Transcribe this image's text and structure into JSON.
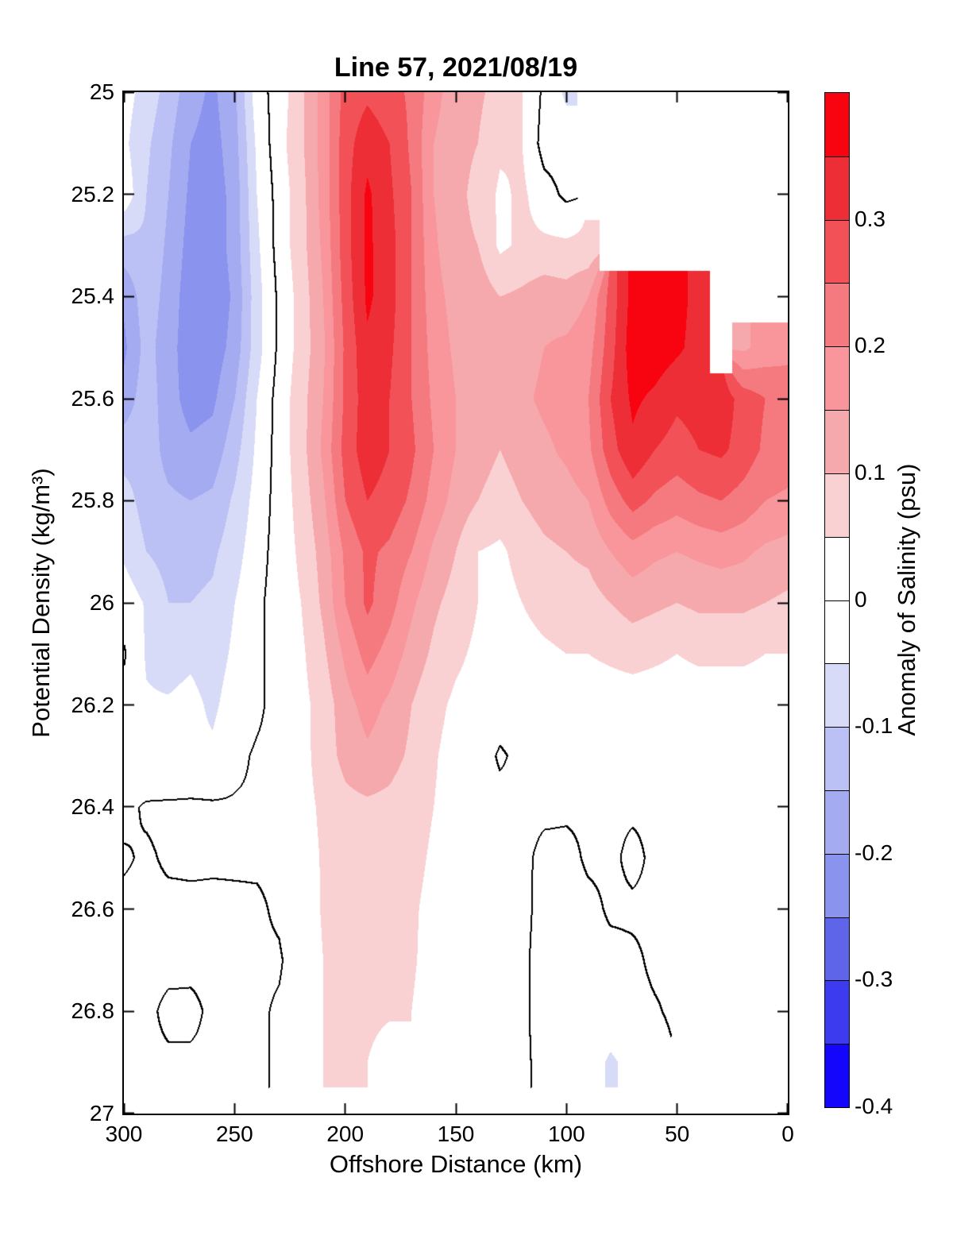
{
  "title": "Line 57, 2021/08/19",
  "axes": {
    "x": {
      "label": "Offshore Distance (km)",
      "tick_labels": [
        "300",
        "250",
        "200",
        "150",
        "100",
        "50",
        "0"
      ],
      "tick_values": [
        300,
        250,
        200,
        150,
        100,
        50,
        0
      ],
      "min": 0,
      "max": 300,
      "reversed": true
    },
    "y": {
      "label": "Potential Density (kg/m³)",
      "tick_labels": [
        "25",
        "25.2",
        "25.4",
        "25.6",
        "25.8",
        "26",
        "26.2",
        "26.4",
        "26.6",
        "26.8",
        "27"
      ],
      "tick_values": [
        25,
        25.2,
        25.4,
        25.6,
        25.8,
        26,
        26.2,
        26.4,
        26.6,
        26.8,
        27
      ],
      "min": 25,
      "max": 27,
      "increases_down": true
    }
  },
  "colorbar": {
    "label": "Anomaly of Salinity (psu)",
    "tick_labels": [
      "0.3",
      "0.2",
      "0.1",
      "0",
      "-0.1",
      "-0.2",
      "-0.3",
      "-0.4"
    ],
    "tick_values": [
      0.3,
      0.2,
      0.1,
      0,
      -0.1,
      -0.2,
      -0.3,
      -0.4
    ],
    "min": -0.4,
    "max": 0.4,
    "level_step": 0.05,
    "colors_low_to_high": [
      "#1405fb",
      "#3d3bef",
      "#5e65e8",
      "#8a93ed",
      "#a4abf1",
      "#bcc1f5",
      "#d8dbf8",
      "#ffffff",
      "#ffffff",
      "#fad1d2",
      "#f6a9ad",
      "#f8969b",
      "#f57a80",
      "#f25158",
      "#ee2e36",
      "#f80310"
    ],
    "line_color": "#000000"
  },
  "chart_data": {
    "type": "heatmap",
    "subtype": "filled-contour-section",
    "title": "Line 57, 2021/08/19",
    "xlabel": "Offshore Distance (km)",
    "ylabel": "Potential Density (kg/m³)",
    "legend_label": "Anomaly of Salinity (psu)",
    "xlim": [
      300,
      0
    ],
    "ylim": [
      25,
      27
    ],
    "contour_level_drawn": 0,
    "x_km": [
      300,
      290,
      280,
      270,
      260,
      250,
      240,
      230,
      220,
      210,
      200,
      190,
      180,
      170,
      160,
      150,
      140,
      130,
      120,
      110,
      100,
      90,
      80,
      70,
      60,
      50,
      40,
      30,
      20,
      10,
      0
    ],
    "y_sigma": [
      25.0,
      25.1,
      25.2,
      25.3,
      25.4,
      25.5,
      25.6,
      25.7,
      25.8,
      25.9,
      26.0,
      26.1,
      26.2,
      26.3,
      26.4,
      26.5,
      26.6,
      26.7,
      26.8,
      26.9,
      27.0
    ],
    "values": [
      [
        -0.03,
        -0.07,
        -0.12,
        -0.18,
        -0.21,
        -0.16,
        -0.02,
        0.02,
        0.09,
        0.17,
        0.27,
        0.29,
        0.27,
        0.24,
        0.17,
        0.12,
        0.11,
        0.08,
        0.05,
        -0.01,
        -0.06,
        null,
        null,
        null,
        null,
        null,
        null,
        null,
        null,
        null,
        null
      ],
      [
        -0.04,
        -0.09,
        -0.14,
        -0.2,
        -0.22,
        -0.17,
        -0.04,
        0.03,
        0.09,
        0.17,
        0.28,
        0.33,
        0.3,
        0.24,
        0.15,
        0.11,
        0.1,
        0.06,
        0.05,
        -0.02,
        -0.02,
        null,
        null,
        null,
        null,
        null,
        null,
        null,
        null,
        null,
        null
      ],
      [
        -0.015,
        -0.1,
        -0.15,
        -0.21,
        -0.23,
        -0.18,
        -0.05,
        0.02,
        0.08,
        0.17,
        0.28,
        0.36,
        0.31,
        0.25,
        0.15,
        0.11,
        0.09,
        0.04,
        0.06,
        0.02,
        -0.01,
        null,
        null,
        null,
        null,
        null,
        null,
        null,
        null,
        null,
        null
      ],
      [
        -0.12,
        -0.11,
        -0.16,
        -0.22,
        -0.23,
        -0.18,
        -0.06,
        0.02,
        0.08,
        0.16,
        0.28,
        0.36,
        0.32,
        0.25,
        0.16,
        0.11,
        0.1,
        0.04,
        0.06,
        0.06,
        0.06,
        0.06,
        null,
        null,
        null,
        null,
        null,
        null,
        null,
        null,
        null
      ],
      [
        -0.19,
        -0.12,
        -0.17,
        -0.23,
        -0.24,
        -0.19,
        -0.07,
        0.01,
        0.07,
        0.15,
        0.27,
        0.36,
        0.32,
        0.25,
        0.17,
        0.13,
        0.13,
        0.1,
        0.11,
        0.13,
        0.12,
        0.15,
        0.27,
        0.37,
        0.38,
        0.37,
        0.33,
        null,
        null,
        null,
        null
      ],
      [
        -0.21,
        -0.13,
        -0.18,
        -0.23,
        -0.23,
        -0.18,
        -0.07,
        0.01,
        0.07,
        0.14,
        0.26,
        0.34,
        0.31,
        0.25,
        0.18,
        0.14,
        0.14,
        0.12,
        0.13,
        0.15,
        0.16,
        0.18,
        0.28,
        0.38,
        0.38,
        0.36,
        0.33,
        null,
        0.14,
        0.17,
        0.19
      ],
      [
        -0.18,
        -0.12,
        -0.18,
        -0.22,
        -0.21,
        -0.15,
        -0.05,
        0.02,
        0.08,
        0.15,
        0.26,
        0.33,
        0.3,
        0.25,
        0.19,
        0.15,
        0.13,
        0.12,
        0.14,
        0.16,
        0.17,
        0.2,
        0.3,
        0.36,
        0.34,
        0.31,
        0.32,
        0.33,
        0.28,
        0.25,
        0.22
      ],
      [
        -0.12,
        -0.12,
        -0.17,
        -0.19,
        -0.18,
        -0.12,
        -0.04,
        0.02,
        0.08,
        0.16,
        0.27,
        0.33,
        0.3,
        0.26,
        0.2,
        0.15,
        0.12,
        0.1,
        0.12,
        0.14,
        0.16,
        0.19,
        0.28,
        0.34,
        0.3,
        0.28,
        0.3,
        0.31,
        0.28,
        0.24,
        0.23
      ],
      [
        -0.08,
        -0.12,
        -0.14,
        -0.15,
        -0.14,
        -0.09,
        -0.03,
        0.02,
        0.07,
        0.14,
        0.25,
        0.3,
        0.28,
        0.24,
        0.18,
        0.13,
        0.1,
        0.08,
        0.1,
        0.12,
        0.13,
        0.15,
        0.22,
        0.27,
        0.24,
        0.22,
        0.24,
        0.25,
        0.23,
        0.2,
        0.19
      ],
      [
        -0.06,
        -0.1,
        -0.12,
        -0.12,
        -0.11,
        -0.07,
        -0.02,
        0.02,
        0.06,
        0.12,
        0.21,
        0.26,
        0.24,
        0.2,
        0.14,
        0.1,
        0.05,
        0.04,
        0.07,
        0.09,
        0.1,
        0.11,
        0.15,
        0.18,
        0.16,
        0.15,
        0.16,
        0.17,
        0.16,
        0.14,
        0.13
      ],
      [
        -0.02,
        -0.055,
        -0.1,
        -0.1,
        -0.09,
        -0.05,
        -0.01,
        0.02,
        0.05,
        0.11,
        0.2,
        0.26,
        0.22,
        0.16,
        0.11,
        0.08,
        0.05,
        0.03,
        0.05,
        0.07,
        0.08,
        0.08,
        0.1,
        0.12,
        0.11,
        0.1,
        0.11,
        0.11,
        0.11,
        0.1,
        0.09
      ],
      [
        0.004,
        -0.055,
        -0.07,
        -0.06,
        -0.075,
        -0.04,
        -0.008,
        0.015,
        0.04,
        0.09,
        0.16,
        0.22,
        0.18,
        0.13,
        0.09,
        0.06,
        0.04,
        0.02,
        0.03,
        0.04,
        0.05,
        0.05,
        0.06,
        0.07,
        0.06,
        0.05,
        0.06,
        0.06,
        0.06,
        0.05,
        0.05
      ],
      [
        -0.015,
        -0.045,
        -0.045,
        -0.035,
        -0.06,
        -0.025,
        -0.008,
        0.015,
        0.035,
        0.07,
        0.13,
        0.17,
        0.14,
        0.1,
        0.065,
        0.04,
        0.03,
        0.02,
        0.02,
        0.02,
        0.02,
        0.02,
        0.02,
        0.02,
        0.02,
        0.02,
        0.02,
        0.02,
        0.02,
        0.02,
        0.02
      ],
      [
        -0.03,
        -0.04,
        -0.05,
        -0.04,
        -0.04,
        -0.01,
        0.005,
        0.01,
        0.03,
        0.075,
        0.115,
        0.14,
        0.12,
        0.09,
        0.055,
        0.03,
        0.02,
        -0.005,
        0.01,
        0.01,
        0.01,
        0.01,
        0.01,
        0.01,
        0.01,
        0.01,
        0.01,
        0.01,
        0.01,
        0.01,
        0.01
      ],
      [
        -0.01,
        0.005,
        0.008,
        0.008,
        0.006,
        0.004,
        0.004,
        0.01,
        0.03,
        0.06,
        0.085,
        0.09,
        0.085,
        0.065,
        0.05,
        0.03,
        0.02,
        0.012,
        0.01,
        0.008,
        0.006,
        0.005,
        0.004,
        0.004,
        0.004,
        0.004,
        0.006,
        0.007,
        0.008,
        0.008,
        0.008
      ],
      [
        0.004,
        -0.005,
        0.005,
        0.005,
        0.004,
        0.004,
        0.004,
        0.005,
        0.025,
        0.055,
        0.07,
        0.075,
        0.07,
        0.06,
        0.045,
        0.028,
        0.018,
        0.012,
        0.009,
        -0.01,
        -0.01,
        0.005,
        0.005,
        -0.006,
        0.005,
        0.005,
        0.006,
        0.006,
        0.007,
        0.007,
        0.007
      ],
      [
        -0.008,
        -0.008,
        -0.008,
        -0.006,
        -0.006,
        -0.005,
        -0.004,
        0.004,
        0.02,
        0.055,
        0.065,
        0.07,
        0.065,
        0.055,
        0.04,
        0.025,
        0.015,
        0.01,
        0.008,
        -0.01,
        -0.012,
        -0.008,
        0.004,
        0.004,
        0.004,
        0.004,
        0.005,
        0.005,
        0.005,
        0.005,
        0.005
      ],
      [
        -0.008,
        -0.008,
        -0.008,
        -0.007,
        -0.006,
        -0.005,
        -0.004,
        -0.003,
        0.015,
        0.05,
        0.065,
        0.065,
        0.06,
        0.055,
        0.035,
        0.02,
        0.012,
        0.008,
        0.006,
        -0.012,
        -0.012,
        -0.01,
        -0.008,
        -0.004,
        0.004,
        0.004,
        0.004,
        0.004,
        0.004,
        0.004,
        0.004
      ],
      [
        -0.008,
        -0.006,
        0.006,
        0.006,
        -0.005,
        -0.005,
        -0.004,
        0.003,
        0.012,
        0.05,
        0.065,
        0.06,
        0.055,
        0.05,
        0.03,
        0.015,
        0.01,
        0.006,
        0.005,
        -0.01,
        -0.01,
        -0.012,
        -0.01,
        -0.006,
        -0.002,
        0.004,
        0.004,
        0.004,
        0.004,
        0.004,
        0.004
      ],
      [
        null,
        -0.004,
        -0.004,
        -0.004,
        -0.004,
        -0.004,
        -0.004,
        0.003,
        0.008,
        0.05,
        0.055,
        0.05,
        0.03,
        0.05,
        0.035,
        0.012,
        0.008,
        0.005,
        0.004,
        -0.006,
        -0.01,
        -0.02,
        -0.06,
        -0.03,
        -0.01,
        null,
        0.003,
        0.003,
        0.003,
        0.003,
        0.003
      ],
      [
        null,
        null,
        null,
        null,
        null,
        null,
        null,
        null,
        null,
        null,
        null,
        null,
        null,
        null,
        null,
        null,
        null,
        null,
        null,
        null,
        null,
        null,
        null,
        null,
        null,
        null,
        null,
        null,
        null,
        null,
        null
      ]
    ]
  }
}
